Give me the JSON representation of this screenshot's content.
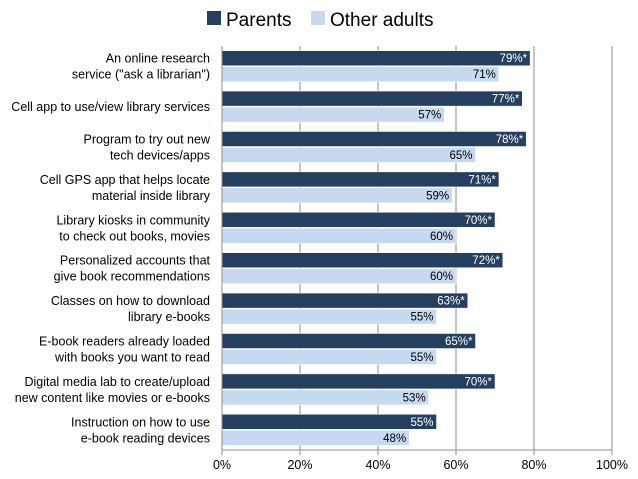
{
  "legend": {
    "parents_label": "Parents",
    "others_label": "Other adults"
  },
  "chart_data": {
    "type": "bar",
    "orientation": "horizontal",
    "title": "",
    "xlabel": "",
    "ylabel": "",
    "xlim": [
      0,
      100
    ],
    "x_ticks": [
      "0%",
      "20%",
      "40%",
      "60%",
      "80%",
      "100%"
    ],
    "grid": true,
    "legend_position": "top",
    "categories": [
      [
        "An online research",
        "service (\"ask a librarian\")"
      ],
      [
        "Cell app to use/view library services"
      ],
      [
        "Program to try out new",
        "tech devices/apps"
      ],
      [
        "Cell GPS app that helps locate",
        "material inside library"
      ],
      [
        "Library kiosks in community",
        "to check out books, movies"
      ],
      [
        "Personalized accounts that",
        "give book recommendations"
      ],
      [
        "Classes on how to download",
        "library e-books"
      ],
      [
        "E-book readers already loaded",
        "with books you want to read"
      ],
      [
        "Digital media lab to create/upload",
        "new content like movies or e-books"
      ],
      [
        "Instruction on how to use",
        "e-book reading devices"
      ]
    ],
    "series": [
      {
        "name": "Parents",
        "color": "#243f60",
        "label_color": "#ffffff",
        "values": [
          79,
          77,
          78,
          71,
          70,
          72,
          63,
          65,
          70,
          55
        ],
        "labels": [
          "79%*",
          "77%*",
          "78%*",
          "71%*",
          "70%*",
          "72%*",
          "63%*",
          "65%*",
          "70%*",
          "55%"
        ]
      },
      {
        "name": "Other adults",
        "color": "#c6d9f1",
        "label_color": "#000000",
        "values": [
          71,
          57,
          65,
          59,
          60,
          60,
          55,
          55,
          53,
          48
        ],
        "labels": [
          "71%",
          "57%",
          "65%",
          "59%",
          "60%",
          "60%",
          "55%",
          "55%",
          "53%",
          "48%"
        ]
      }
    ]
  }
}
